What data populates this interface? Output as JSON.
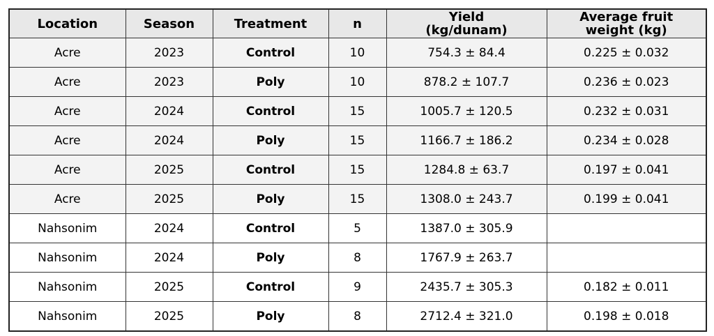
{
  "table": {
    "header": [
      "Location",
      "Season",
      "Treatment",
      "n",
      "Yield\n(kg/dunam)",
      "Average fruit\nweight (kg)"
    ],
    "rows": [
      [
        "Acre",
        "2023",
        "Control",
        "10",
        "754.3 ± 84.4",
        "0.225 ± 0.032"
      ],
      [
        "Acre",
        "2023",
        "Poly",
        "10",
        "878.2 ± 107.7",
        "0.236 ± 0.023"
      ],
      [
        "Acre",
        "2024",
        "Control",
        "15",
        "1005.7 ± 120.5",
        "0.232 ± 0.031"
      ],
      [
        "Acre",
        "2024",
        "Poly",
        "15",
        "1166.7 ± 186.2",
        "0.234 ± 0.028"
      ],
      [
        "Acre",
        "2025",
        "Control",
        "15",
        "1284.8 ± 63.7",
        "0.197 ± 0.041"
      ],
      [
        "Acre",
        "2025",
        "Poly",
        "15",
        "1308.0 ± 243.7",
        "0.199 ± 0.041"
      ],
      [
        "Nahsonim",
        "2024",
        "Control",
        "5",
        "1387.0 ± 305.9",
        null
      ],
      [
        "Nahsonim",
        "2024",
        "Poly",
        "8",
        "1767.9 ± 263.7",
        null
      ],
      [
        "Nahsonim",
        "2025",
        "Control",
        "9",
        "2435.7 ± 305.3",
        "0.182 ± 0.011"
      ],
      [
        "Nahsonim",
        "2025",
        "Poly",
        "8",
        "2712.4 ± 321.0",
        "0.198 ± 0.018"
      ]
    ]
  }
}
